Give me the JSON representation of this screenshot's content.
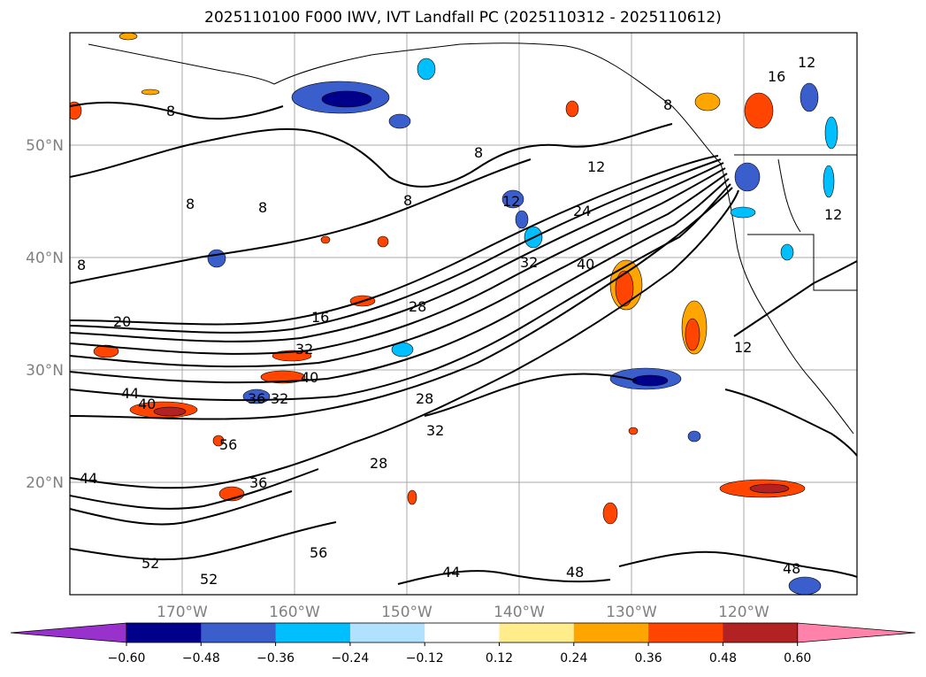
{
  "title": "2025110100 F000 IWV, IVT Landfall PC (2025110312 - 2025110612)",
  "lat_labels": [
    "50°N",
    "40°N",
    "30°N",
    "20°N"
  ],
  "lon_labels": [
    "170°W",
    "160°W",
    "150°W",
    "140°W",
    "130°W",
    "120°W"
  ],
  "colorbar": {
    "colors": [
      "#9932cc",
      "#00008b",
      "#3a5fcd",
      "#00bfff",
      "#b0e2ff",
      "#ffffff",
      "#ffec8b",
      "#ffa500",
      "#ff4500",
      "#b22222",
      "#ff82ab"
    ],
    "tick_labels": [
      "−0.60",
      "−0.48",
      "−0.36",
      "−0.24",
      "−0.12",
      "0.12",
      "0.24",
      "0.36",
      "0.48",
      "0.60"
    ]
  },
  "contour_labels": [
    "24",
    "40",
    "32",
    "28",
    "16",
    "12",
    "20",
    "32",
    "40",
    "44",
    "40",
    "36",
    "32",
    "28",
    "56",
    "36",
    "28",
    "32",
    "12",
    "8",
    "8",
    "8",
    "8",
    "8",
    "12",
    "56",
    "52",
    "44",
    "52",
    "48",
    "44",
    "48",
    "16",
    "12",
    "8",
    "8",
    "12"
  ]
}
